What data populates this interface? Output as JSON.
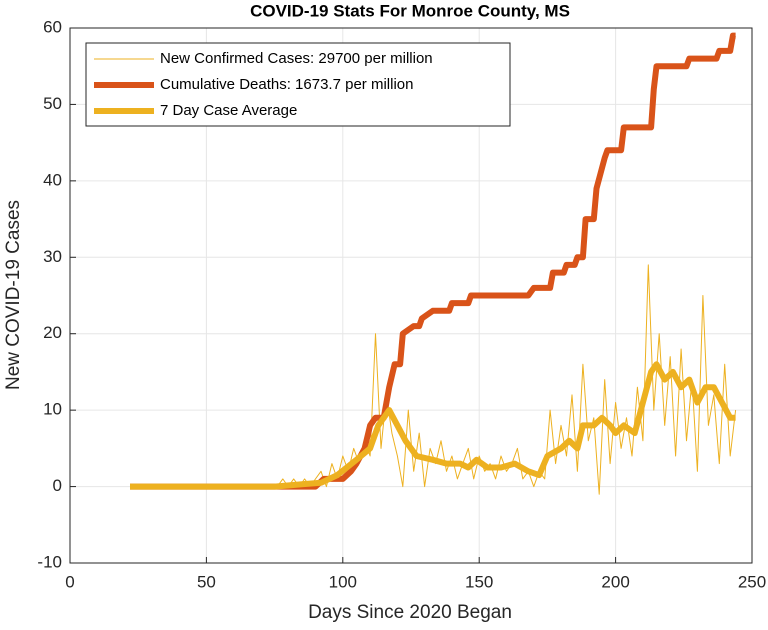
{
  "chart_data": {
    "type": "line",
    "title": "COVID-19 Stats For Monroe County, MS",
    "xlabel": "Days Since 2020 Began",
    "ylabel": "New COVID-19 Cases",
    "xlim": [
      0,
      250
    ],
    "xticks": [
      0,
      50,
      100,
      150,
      200,
      250
    ],
    "ylim": [
      -10,
      60
    ],
    "yticks": [
      -10,
      0,
      10,
      20,
      30,
      40,
      50,
      60
    ],
    "grid": true,
    "legend": "upper left",
    "series": [
      {
        "name": "New Confirmed Cases: 29700 per million",
        "color": "#EDB120",
        "width": 1,
        "x": [
          22,
          76,
          78,
          80,
          82,
          84,
          86,
          88,
          90,
          92,
          94,
          96,
          98,
          100,
          102,
          104,
          106,
          108,
          110,
          112,
          114,
          116,
          118,
          120,
          122,
          124,
          126,
          128,
          130,
          132,
          134,
          136,
          138,
          140,
          142,
          144,
          146,
          148,
          150,
          152,
          154,
          156,
          158,
          160,
          162,
          164,
          166,
          168,
          170,
          172,
          174,
          176,
          178,
          180,
          182,
          184,
          186,
          188,
          190,
          192,
          194,
          196,
          198,
          200,
          202,
          204,
          206,
          208,
          210,
          212,
          214,
          216,
          218,
          220,
          222,
          224,
          226,
          228,
          230,
          232,
          234,
          236,
          238,
          240,
          242,
          244
        ],
        "values": [
          0,
          0,
          1,
          0,
          1,
          0,
          1,
          0,
          1,
          2,
          0,
          3,
          1,
          4,
          2,
          5,
          3,
          6,
          4,
          20,
          5,
          12,
          7,
          4,
          0,
          10,
          2,
          7,
          0,
          5,
          3,
          6,
          2,
          4,
          1,
          3,
          5,
          1,
          4,
          2,
          3,
          1,
          4,
          2,
          3,
          5,
          1,
          2,
          0,
          2,
          1,
          10,
          3,
          8,
          4,
          12,
          2,
          16,
          6,
          9,
          -1,
          14,
          3,
          11,
          5,
          9,
          4,
          13,
          6,
          29,
          10,
          20,
          8,
          17,
          4,
          18,
          6,
          14,
          2,
          25,
          8,
          12,
          3,
          16,
          4,
          10
        ]
      },
      {
        "name": "Cumulative Deaths: 1673.7 per million",
        "color": "#D95319",
        "width": 6,
        "x": [
          22,
          90,
          93,
          100,
          103,
          105,
          108,
          110,
          112,
          115,
          117,
          119,
          121,
          122,
          126,
          128,
          129,
          133,
          139,
          140,
          146,
          147,
          168,
          170,
          176,
          177,
          181,
          182,
          185,
          186,
          188,
          189,
          192,
          193,
          196,
          197,
          202,
          203,
          213,
          214,
          215,
          226,
          227,
          237,
          238,
          242,
          243,
          244
        ],
        "values": [
          0,
          0,
          1,
          1,
          2,
          3,
          5,
          8,
          9,
          9,
          13,
          16,
          16,
          20,
          21,
          21,
          22,
          23,
          23,
          24,
          24,
          25,
          25,
          26,
          26,
          28,
          28,
          29,
          29,
          30,
          30,
          35,
          35,
          39,
          43,
          44,
          44,
          47,
          47,
          52,
          55,
          55,
          56,
          56,
          57,
          57,
          59,
          59
        ]
      },
      {
        "name": "7 Day Case Average",
        "color": "#EDB120",
        "width": 6,
        "x": [
          22,
          75,
          85,
          92,
          98,
          105,
          110,
          113,
          117,
          120,
          123,
          127,
          133,
          138,
          143,
          146,
          149,
          153,
          158,
          163,
          168,
          172,
          175,
          180,
          183,
          186,
          188,
          192,
          195,
          198,
          200,
          203,
          207,
          210,
          213,
          215,
          218,
          221,
          224,
          227,
          230,
          233,
          236,
          239,
          242,
          244
        ],
        "values": [
          0,
          0,
          0.3,
          0.5,
          1.5,
          3.5,
          5,
          8,
          10,
          8,
          6,
          4,
          3.5,
          3,
          3,
          2.5,
          3.5,
          2.5,
          2.5,
          3,
          2,
          1.5,
          4,
          5,
          6,
          5,
          8,
          8,
          9,
          8,
          7,
          8,
          7,
          11,
          15,
          16,
          14,
          15,
          13,
          14,
          11,
          13,
          13,
          11,
          9,
          9
        ]
      }
    ]
  }
}
